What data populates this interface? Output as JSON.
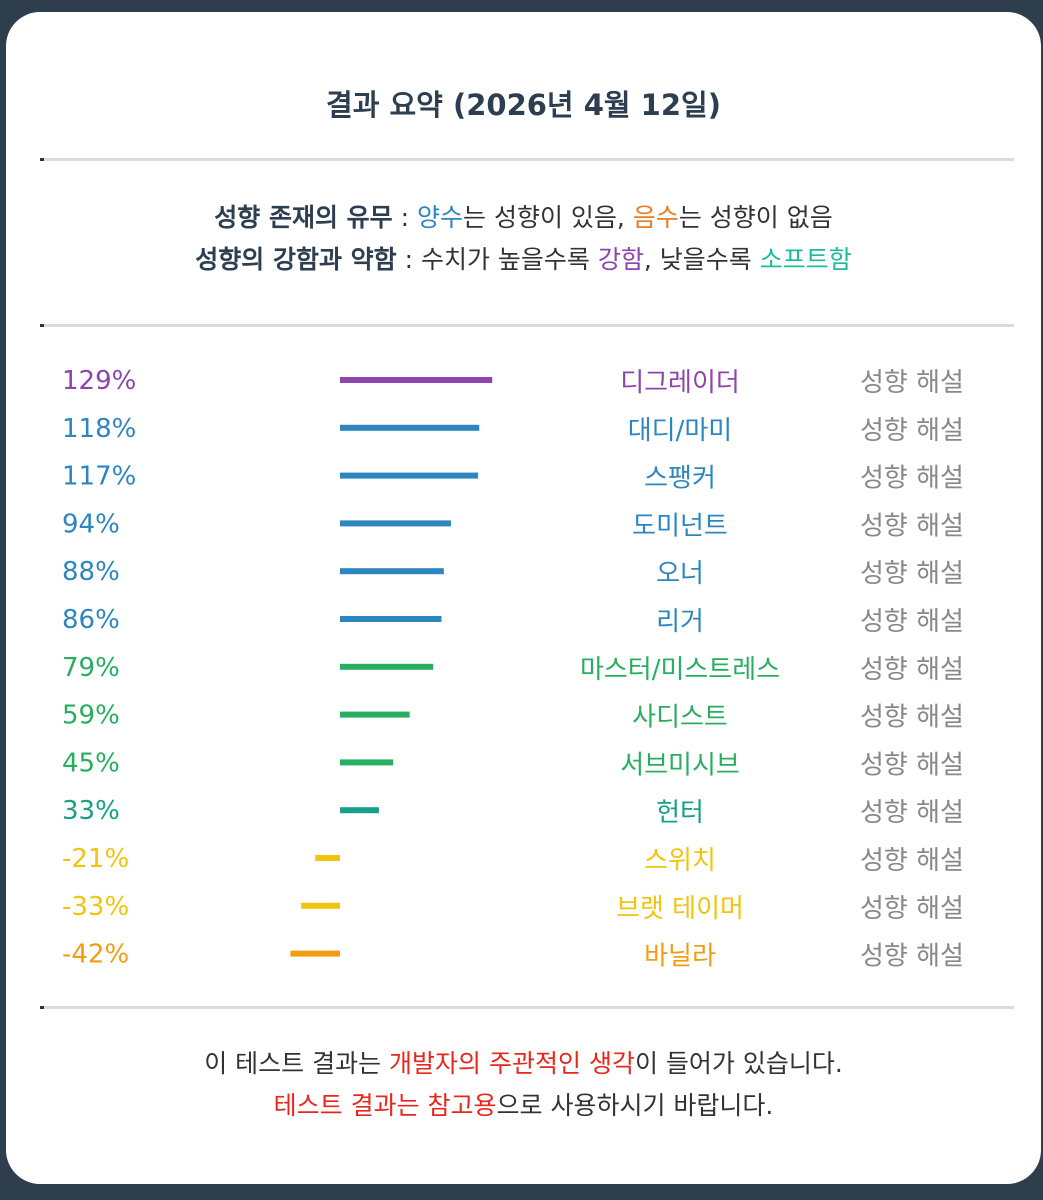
{
  "title": "결과 요약 (2026년 4월 12일)",
  "legend": {
    "line1": {
      "label": "성향 존재의 유무",
      "sep": " : ",
      "positive": "양수",
      "positive_text": "는 성향이 있음, ",
      "negative": "음수",
      "negative_text": "는 성향이 없음"
    },
    "line2": {
      "label": "성향의 강함과 약함",
      "sep": " : ",
      "text1": "수치가 높을수록 ",
      "strong": "강함",
      "text2": ", 낮을수록 ",
      "soft": "소프트함"
    }
  },
  "chart_data": {
    "type": "bar",
    "orientation": "horizontal",
    "rows": [
      {
        "label": "디그레이더",
        "value": 129,
        "value_text": "129%",
        "color": "#8e44ad",
        "link": "성향 해설"
      },
      {
        "label": "대디/마미",
        "value": 118,
        "value_text": "118%",
        "color": "#2e86c1",
        "link": "성향 해설"
      },
      {
        "label": "스팽커",
        "value": 117,
        "value_text": "117%",
        "color": "#2e86c1",
        "link": "성향 해설"
      },
      {
        "label": "도미넌트",
        "value": 94,
        "value_text": "94%",
        "color": "#2e86c1",
        "link": "성향 해설"
      },
      {
        "label": "오너",
        "value": 88,
        "value_text": "88%",
        "color": "#2e86c1",
        "link": "성향 해설"
      },
      {
        "label": "리거",
        "value": 86,
        "value_text": "86%",
        "color": "#2e86c1",
        "link": "성향 해설"
      },
      {
        "label": "마스터/미스트레스",
        "value": 79,
        "value_text": "79%",
        "color": "#27ae60",
        "link": "성향 해설"
      },
      {
        "label": "사디스트",
        "value": 59,
        "value_text": "59%",
        "color": "#27ae60",
        "link": "성향 해설"
      },
      {
        "label": "서브미시브",
        "value": 45,
        "value_text": "45%",
        "color": "#27ae60",
        "link": "성향 해설"
      },
      {
        "label": "헌터",
        "value": 33,
        "value_text": "33%",
        "color": "#16a085",
        "link": "성향 해설"
      },
      {
        "label": "스위치",
        "value": -21,
        "value_text": "-21%",
        "color": "#f1c40f",
        "link": "성향 해설"
      },
      {
        "label": "브랫 테이머",
        "value": -33,
        "value_text": "-33%",
        "color": "#f1c40f",
        "link": "성향 해설"
      },
      {
        "label": "바닐라",
        "value": -42,
        "value_text": "-42%",
        "color": "#f39c12",
        "link": "성향 해설"
      }
    ]
  },
  "footer": {
    "line1_a": "이 테스트 결과는 ",
    "line1_red1": "개발자의 ",
    "line1_red2": "주관적인 ",
    "line1_red3": "생각",
    "line1_b": "이 들어가 있습니다.",
    "line2_red": "테스트 결과는 참고용",
    "line2_b": "으로 사용하시기 바랍니다."
  }
}
